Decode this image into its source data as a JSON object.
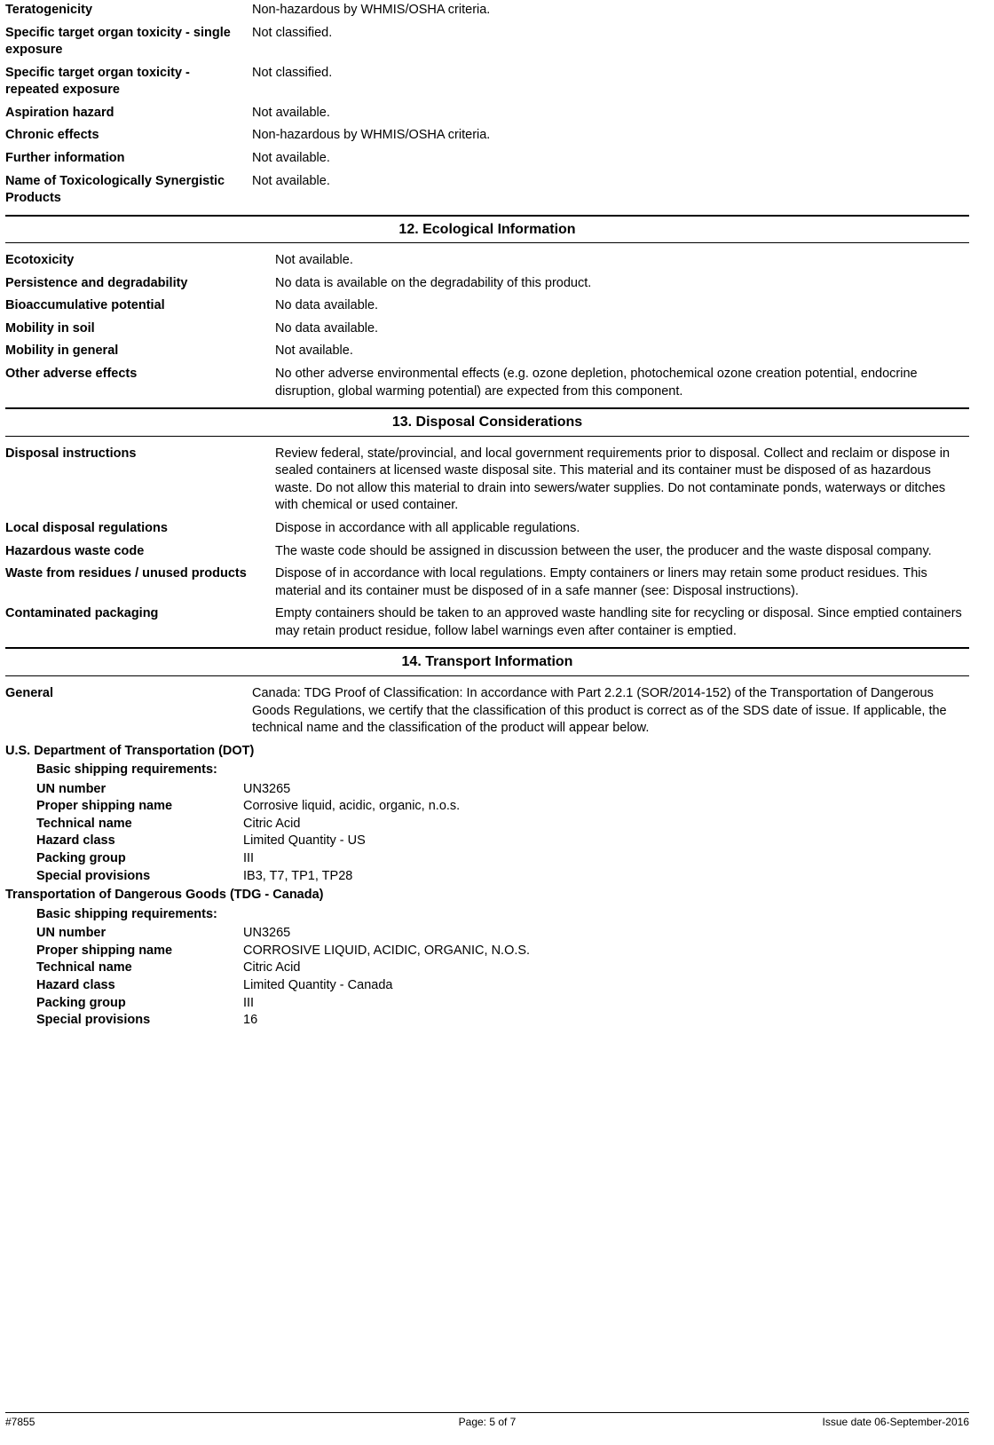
{
  "top_rows": [
    {
      "label": "Teratogenicity",
      "value": "Non-hazardous by WHMIS/OSHA criteria."
    },
    {
      "label": "Specific target organ toxicity - single exposure",
      "value": "Not classified."
    },
    {
      "label": "Specific target organ toxicity - repeated exposure",
      "value": "Not classified."
    },
    {
      "label": "Aspiration hazard",
      "value": "Not available."
    },
    {
      "label": "Chronic effects",
      "value": "Non-hazardous by WHMIS/OSHA criteria."
    },
    {
      "label": "Further information",
      "value": "Not available."
    },
    {
      "label": "Name of Toxicologically Synergistic Products",
      "value": "Not available."
    }
  ],
  "section12": {
    "title": "12. Ecological Information",
    "rows": [
      {
        "label": "Ecotoxicity",
        "value": "Not available."
      },
      {
        "label": "Persistence and degradability",
        "value": "No data is available on the degradability of this product."
      },
      {
        "label": "Bioaccumulative potential",
        "value": "No data available."
      },
      {
        "label": "Mobility in soil",
        "value": "No data available."
      },
      {
        "label": "Mobility in general",
        "value": "Not available."
      },
      {
        "label": "Other adverse effects",
        "value": "No other adverse environmental effects (e.g. ozone depletion, photochemical ozone creation potential, endocrine disruption, global warming potential) are expected from this component."
      }
    ]
  },
  "section13": {
    "title": "13. Disposal Considerations",
    "rows": [
      {
        "label": "Disposal instructions",
        "value": "Review federal, state/provincial, and local government requirements prior to disposal. Collect and reclaim or dispose in sealed containers at licensed waste disposal site. This material and its container must be disposed of as hazardous waste. Do not allow this material to drain into sewers/water supplies. Do not contaminate ponds, waterways or ditches with chemical or used container."
      },
      {
        "label": "Local disposal regulations",
        "value": "Dispose in accordance with all applicable regulations."
      },
      {
        "label": "Hazardous waste code",
        "value": "The waste code should be assigned in discussion between the user, the producer and the waste disposal company."
      },
      {
        "label": "Waste from residues / unused products",
        "value": "Dispose of in accordance with local regulations. Empty containers or liners may retain some product residues. This material and its container must be disposed of in a safe manner (see: Disposal instructions)."
      },
      {
        "label": "Contaminated packaging",
        "value": "Empty containers should be taken to an approved waste handling site for recycling or disposal. Since emptied containers may retain product residue, follow label warnings even after container is emptied."
      }
    ]
  },
  "section14": {
    "title": "14. Transport Information",
    "general": {
      "label": "General",
      "value": "Canada: TDG Proof of Classification: In accordance with Part 2.2.1 (SOR/2014-152) of the Transportation of Dangerous Goods Regulations, we certify that the classification of this product is correct as of the SDS date of issue.  If applicable, the technical name and the classification of the product will appear below."
    },
    "dot": {
      "heading": "U.S. Department of Transportation (DOT)",
      "subheading": "Basic shipping requirements:",
      "rows": [
        {
          "label": "UN number",
          "value": "UN3265"
        },
        {
          "label": "Proper shipping name",
          "value": "Corrosive liquid, acidic, organic, n.o.s."
        },
        {
          "label": "Technical name",
          "value": "Citric Acid"
        },
        {
          "label": "Hazard class",
          "value": "Limited Quantity - US"
        },
        {
          "label": "Packing group",
          "value": "III"
        },
        {
          "label": "Special provisions",
          "value": "IB3, T7, TP1, TP28"
        }
      ]
    },
    "tdg": {
      "heading": "Transportation of Dangerous Goods (TDG - Canada)",
      "subheading": "Basic shipping requirements:",
      "rows": [
        {
          "label": "UN number",
          "value": "UN3265"
        },
        {
          "label": "Proper shipping name",
          "value": "CORROSIVE LIQUID, ACIDIC, ORGANIC, N.O.S."
        },
        {
          "label": "Technical name",
          "value": "Citric Acid"
        },
        {
          "label": "Hazard class",
          "value": "Limited Quantity - Canada"
        },
        {
          "label": "Packing group",
          "value": "III"
        },
        {
          "label": "Special provisions",
          "value": "16"
        }
      ]
    }
  },
  "footer": {
    "left": "#7855",
    "center": "Page: 5 of 7",
    "right": "Issue date  06-September-2016"
  }
}
